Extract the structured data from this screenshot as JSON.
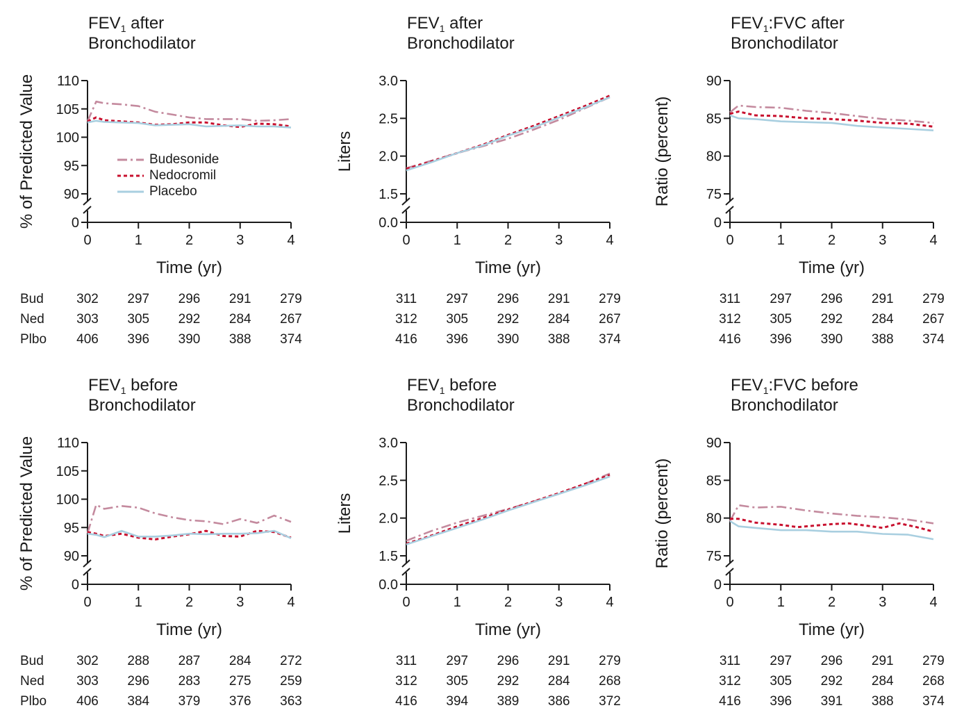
{
  "legend": [
    {
      "name": "Budesonide",
      "color": "#c48a9e",
      "style": "dashdot"
    },
    {
      "name": "Nedocromil",
      "color": "#c8102e",
      "style": "dotted"
    },
    {
      "name": "Placebo",
      "color": "#a9cfe0",
      "style": "solid"
    }
  ],
  "row_labels": [
    "Bud",
    "Ned",
    "Plbo"
  ],
  "chart_data": [
    {
      "type": "line",
      "title_pre": "FEV",
      "title_sub": "1",
      "title_line1_rest": " after",
      "title_line2": "Bronchodilator",
      "xlabel": "Time (yr)",
      "ylabel": "% of Predicted Value",
      "xlim": [
        0,
        4
      ],
      "xticks": [
        "0",
        "1",
        "2",
        "3",
        "4"
      ],
      "ylim": [
        88,
        110
      ],
      "yticks": [
        "110",
        "105",
        "100",
        "95",
        "90"
      ],
      "ytick_values": [
        110,
        105,
        100,
        95,
        90
      ],
      "y_zero_label": "0",
      "axis_break": true,
      "show_legend": true,
      "series": [
        {
          "name": "Budesonide",
          "x": [
            0,
            0.17,
            0.33,
            0.67,
            1.0,
            1.33,
            1.67,
            2.0,
            2.33,
            2.67,
            3.0,
            3.33,
            3.67,
            4.0
          ],
          "y": [
            102.8,
            106.3,
            106.0,
            105.8,
            105.5,
            104.5,
            104.0,
            103.5,
            103.2,
            103.2,
            103.2,
            102.9,
            103.0,
            103.2
          ]
        },
        {
          "name": "Nedocromil",
          "x": [
            0,
            0.17,
            0.33,
            0.67,
            1.0,
            1.33,
            1.67,
            2.0,
            2.33,
            2.67,
            3.0,
            3.33,
            3.67,
            4.0
          ],
          "y": [
            102.8,
            103.5,
            103.0,
            102.8,
            102.6,
            102.2,
            102.3,
            102.6,
            102.6,
            102.1,
            101.8,
            102.4,
            102.3,
            101.9
          ]
        },
        {
          "name": "Placebo",
          "x": [
            0,
            0.17,
            0.33,
            0.67,
            1.0,
            1.33,
            1.67,
            2.0,
            2.33,
            2.67,
            3.0,
            3.33,
            3.67,
            4.0
          ],
          "y": [
            102.6,
            102.9,
            102.7,
            102.6,
            102.5,
            102.1,
            102.2,
            102.3,
            101.9,
            102.0,
            102.1,
            101.9,
            101.9,
            101.7
          ]
        }
      ],
      "counts": {
        "Bud": [
          "302",
          "297",
          "296",
          "291",
          "279"
        ],
        "Ned": [
          "303",
          "305",
          "292",
          "284",
          "267"
        ],
        "Plbo": [
          "406",
          "396",
          "390",
          "388",
          "374"
        ]
      }
    },
    {
      "type": "line",
      "title_pre": "FEV",
      "title_sub": "1",
      "title_line1_rest": " after",
      "title_line2": "Bronchodilator",
      "xlabel": "Time (yr)",
      "ylabel": "Liters",
      "xlim": [
        0,
        4
      ],
      "xticks": [
        "0",
        "1",
        "2",
        "3",
        "4"
      ],
      "ylim": [
        1.3,
        3.0
      ],
      "yticks": [
        "3.0",
        "2.5",
        "2.0",
        "1.5"
      ],
      "ytick_values": [
        3.0,
        2.5,
        2.0,
        1.5
      ],
      "y_zero_label": "0.0",
      "axis_break": true,
      "show_legend": false,
      "series": [
        {
          "name": "Budesonide",
          "x": [
            0,
            0.5,
            1.0,
            1.5,
            2.0,
            2.5,
            3.0,
            3.5,
            4.0
          ],
          "y": [
            1.84,
            1.94,
            2.04,
            2.13,
            2.23,
            2.35,
            2.48,
            2.63,
            2.78
          ]
        },
        {
          "name": "Nedocromil",
          "x": [
            0,
            0.5,
            1.0,
            1.5,
            2.0,
            2.5,
            3.0,
            3.5,
            4.0
          ],
          "y": [
            1.83,
            1.93,
            2.04,
            2.15,
            2.28,
            2.4,
            2.53,
            2.66,
            2.8
          ]
        },
        {
          "name": "Placebo",
          "x": [
            0,
            0.5,
            1.0,
            1.5,
            2.0,
            2.5,
            3.0,
            3.5,
            4.0
          ],
          "y": [
            1.81,
            1.92,
            2.04,
            2.14,
            2.27,
            2.38,
            2.51,
            2.64,
            2.78
          ]
        }
      ],
      "counts": {
        "Bud": [
          "311",
          "297",
          "296",
          "291",
          "279"
        ],
        "Ned": [
          "312",
          "305",
          "292",
          "284",
          "267"
        ],
        "Plbo": [
          "416",
          "396",
          "390",
          "388",
          "374"
        ]
      }
    },
    {
      "type": "line",
      "title_pre": "FEV",
      "title_sub": "1",
      "title_line1_rest": ":FVC after",
      "title_line2": "Bronchodilator",
      "xlabel": "Time (yr)",
      "ylabel": "Ratio (percent)",
      "xlim": [
        0,
        4
      ],
      "xticks": [
        "0",
        "1",
        "2",
        "3",
        "4"
      ],
      "ylim": [
        73,
        90
      ],
      "yticks": [
        "90",
        "85",
        "80",
        "75"
      ],
      "ytick_values": [
        90,
        85,
        80,
        75
      ],
      "y_zero_label": "0",
      "axis_break": true,
      "show_legend": false,
      "series": [
        {
          "name": "Budesonide",
          "x": [
            0,
            0.17,
            0.5,
            1.0,
            1.5,
            2.0,
            2.5,
            3.0,
            3.5,
            4.0
          ],
          "y": [
            85.8,
            86.7,
            86.5,
            86.4,
            86.0,
            85.7,
            85.3,
            84.9,
            84.7,
            84.4
          ]
        },
        {
          "name": "Nedocromil",
          "x": [
            0,
            0.17,
            0.5,
            1.0,
            1.5,
            2.0,
            2.5,
            3.0,
            3.5,
            4.0
          ],
          "y": [
            85.6,
            85.9,
            85.4,
            85.3,
            85.0,
            84.9,
            84.7,
            84.4,
            84.3,
            83.9
          ]
        },
        {
          "name": "Placebo",
          "x": [
            0,
            0.17,
            0.5,
            1.0,
            1.5,
            2.0,
            2.5,
            3.0,
            3.5,
            4.0
          ],
          "y": [
            85.4,
            85.0,
            84.9,
            84.6,
            84.5,
            84.4,
            84.0,
            83.8,
            83.6,
            83.4
          ]
        }
      ],
      "counts": {
        "Bud": [
          "311",
          "297",
          "296",
          "291",
          "279"
        ],
        "Ned": [
          "312",
          "305",
          "292",
          "284",
          "267"
        ],
        "Plbo": [
          "416",
          "396",
          "390",
          "388",
          "374"
        ]
      }
    },
    {
      "type": "line",
      "title_pre": "FEV",
      "title_sub": "1",
      "title_line1_rest": " before",
      "title_line2": "Bronchodilator",
      "xlabel": "Time (yr)",
      "ylabel": "% of Predicted Value",
      "xlim": [
        0,
        4
      ],
      "xticks": [
        "0",
        "1",
        "2",
        "3",
        "4"
      ],
      "ylim": [
        88,
        110
      ],
      "yticks": [
        "110",
        "105",
        "100",
        "95",
        "90"
      ],
      "ytick_values": [
        110,
        105,
        100,
        95,
        90
      ],
      "y_zero_label": "0",
      "axis_break": true,
      "show_legend": false,
      "series": [
        {
          "name": "Budesonide",
          "x": [
            0,
            0.17,
            0.33,
            0.67,
            1.0,
            1.33,
            1.67,
            2.0,
            2.33,
            2.67,
            3.0,
            3.33,
            3.67,
            4.0
          ],
          "y": [
            94.0,
            99.0,
            98.3,
            98.8,
            98.5,
            97.5,
            96.8,
            96.3,
            96.1,
            95.6,
            96.5,
            95.8,
            97.1,
            96.0
          ]
        },
        {
          "name": "Nedocromil",
          "x": [
            0,
            0.17,
            0.33,
            0.67,
            1.0,
            1.33,
            1.67,
            2.0,
            2.33,
            2.67,
            3.0,
            3.33,
            3.67,
            4.0
          ],
          "y": [
            94.2,
            93.9,
            93.5,
            93.9,
            93.2,
            92.9,
            93.4,
            93.8,
            94.4,
            93.5,
            93.4,
            94.4,
            94.2,
            93.2
          ]
        },
        {
          "name": "Placebo",
          "x": [
            0,
            0.17,
            0.33,
            0.67,
            1.0,
            1.33,
            1.67,
            2.0,
            2.33,
            2.67,
            3.0,
            3.33,
            3.67,
            4.0
          ],
          "y": [
            93.9,
            93.7,
            93.3,
            94.4,
            93.4,
            93.4,
            93.6,
            93.9,
            93.8,
            93.9,
            93.9,
            94.0,
            94.4,
            93.1
          ]
        }
      ],
      "counts": {
        "Bud": [
          "302",
          "288",
          "287",
          "284",
          "272"
        ],
        "Ned": [
          "303",
          "296",
          "283",
          "275",
          "259"
        ],
        "Plbo": [
          "406",
          "384",
          "379",
          "376",
          "363"
        ]
      }
    },
    {
      "type": "line",
      "title_pre": "FEV",
      "title_sub": "1",
      "title_line1_rest": " before",
      "title_line2": "Bronchodilator",
      "xlabel": "Time (yr)",
      "ylabel": "Liters",
      "xlim": [
        0,
        4
      ],
      "xticks": [
        "0",
        "1",
        "2",
        "3",
        "4"
      ],
      "ylim": [
        1.3,
        3.0
      ],
      "yticks": [
        "3.0",
        "2.5",
        "2.0",
        "1.5"
      ],
      "ytick_values": [
        3.0,
        2.5,
        2.0,
        1.5
      ],
      "y_zero_label": "0.0",
      "axis_break": true,
      "show_legend": false,
      "series": [
        {
          "name": "Budesonide",
          "x": [
            0,
            0.5,
            1.0,
            1.5,
            2.0,
            2.5,
            3.0,
            3.5,
            4.0
          ],
          "y": [
            1.7,
            1.83,
            1.94,
            2.03,
            2.12,
            2.22,
            2.32,
            2.45,
            2.59
          ]
        },
        {
          "name": "Nedocromil",
          "x": [
            0,
            0.5,
            1.0,
            1.5,
            2.0,
            2.5,
            3.0,
            3.5,
            4.0
          ],
          "y": [
            1.66,
            1.77,
            1.89,
            2.0,
            2.11,
            2.22,
            2.33,
            2.45,
            2.57
          ]
        },
        {
          "name": "Placebo",
          "x": [
            0,
            0.5,
            1.0,
            1.5,
            2.0,
            2.5,
            3.0,
            3.5,
            4.0
          ],
          "y": [
            1.65,
            1.76,
            1.87,
            1.98,
            2.1,
            2.21,
            2.32,
            2.43,
            2.55
          ]
        }
      ],
      "counts": {
        "Bud": [
          "311",
          "297",
          "296",
          "291",
          "279"
        ],
        "Ned": [
          "312",
          "305",
          "292",
          "284",
          "268"
        ],
        "Plbo": [
          "416",
          "394",
          "389",
          "386",
          "372"
        ]
      }
    },
    {
      "type": "line",
      "title_pre": "FEV",
      "title_sub": "1",
      "title_line1_rest": ":FVC before",
      "title_line2": "Bronchodilator",
      "xlabel": "Time (yr)",
      "ylabel": "Ratio (percent)",
      "xlim": [
        0,
        4
      ],
      "xticks": [
        "0",
        "1",
        "2",
        "3",
        "4"
      ],
      "ylim": [
        73,
        90
      ],
      "yticks": [
        "90",
        "85",
        "80",
        "75"
      ],
      "ytick_values": [
        90,
        85,
        80,
        75
      ],
      "y_zero_label": "0",
      "axis_break": true,
      "show_legend": false,
      "series": [
        {
          "name": "Budesonide",
          "x": [
            0,
            0.17,
            0.5,
            1.0,
            1.5,
            2.0,
            2.5,
            3.0,
            3.5,
            4.0
          ],
          "y": [
            79.6,
            81.7,
            81.4,
            81.5,
            81.0,
            80.6,
            80.3,
            80.1,
            79.8,
            79.3
          ]
        },
        {
          "name": "Nedocromil",
          "x": [
            0,
            0.17,
            0.5,
            1.0,
            1.33,
            1.67,
            2.0,
            2.33,
            2.67,
            3.0,
            3.33,
            3.67,
            4.0
          ],
          "y": [
            79.9,
            79.9,
            79.4,
            79.1,
            78.8,
            79.0,
            79.2,
            79.3,
            79.0,
            78.7,
            79.3,
            78.8,
            78.2
          ]
        },
        {
          "name": "Placebo",
          "x": [
            0,
            0.17,
            0.5,
            1.0,
            1.5,
            2.0,
            2.5,
            3.0,
            3.5,
            4.0
          ],
          "y": [
            79.6,
            78.9,
            78.7,
            78.4,
            78.4,
            78.2,
            78.2,
            77.9,
            77.8,
            77.2
          ]
        }
      ],
      "counts": {
        "Bud": [
          "311",
          "297",
          "296",
          "291",
          "279"
        ],
        "Ned": [
          "312",
          "305",
          "292",
          "284",
          "268"
        ],
        "Plbo": [
          "416",
          "396",
          "391",
          "388",
          "374"
        ]
      }
    }
  ]
}
